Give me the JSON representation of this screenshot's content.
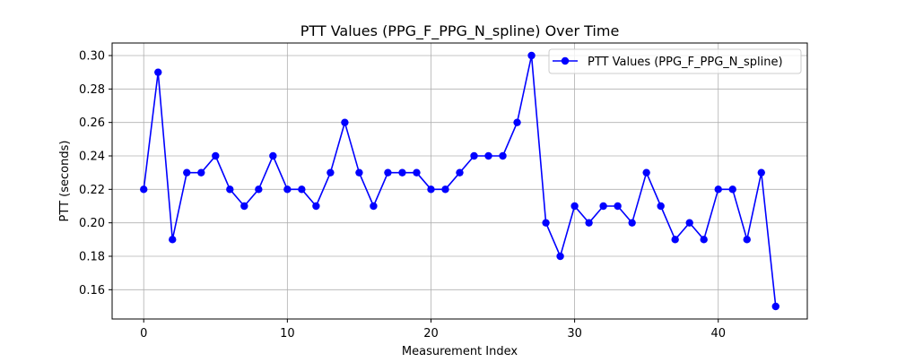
{
  "chart_data": {
    "type": "line",
    "title": "PTT Values (PPG_F_PPG_N_spline) Over Time",
    "xlabel": "Measurement Index",
    "ylabel": "PTT (seconds)",
    "xlim": [
      -2.2,
      46.2
    ],
    "ylim": [
      0.1425,
      0.3075
    ],
    "x_ticks": [
      0,
      10,
      20,
      30,
      40
    ],
    "y_ticks": [
      0.16,
      0.18,
      0.2,
      0.22,
      0.24,
      0.26,
      0.28,
      0.3
    ],
    "grid": true,
    "legend_position": "top-right",
    "series": [
      {
        "name": "PTT Values (PPG_F_PPG_N_spline)",
        "color": "#0000ff",
        "marker": "circle",
        "x": [
          0,
          1,
          2,
          3,
          4,
          5,
          6,
          7,
          8,
          9,
          10,
          11,
          12,
          13,
          14,
          15,
          16,
          17,
          18,
          19,
          20,
          21,
          22,
          23,
          24,
          25,
          26,
          27,
          28,
          29,
          30,
          31,
          32,
          33,
          34,
          35,
          36,
          37,
          38,
          39,
          40,
          41,
          42,
          43,
          44
        ],
        "values": [
          0.22,
          0.29,
          0.19,
          0.23,
          0.23,
          0.24,
          0.22,
          0.21,
          0.22,
          0.24,
          0.22,
          0.22,
          0.21,
          0.23,
          0.26,
          0.23,
          0.21,
          0.23,
          0.23,
          0.23,
          0.22,
          0.22,
          0.23,
          0.24,
          0.24,
          0.24,
          0.26,
          0.3,
          0.2,
          0.18,
          0.21,
          0.2,
          0.21,
          0.21,
          0.2,
          0.23,
          0.21,
          0.19,
          0.2,
          0.19,
          0.22,
          0.22,
          0.19,
          0.23,
          0.15
        ]
      }
    ]
  }
}
